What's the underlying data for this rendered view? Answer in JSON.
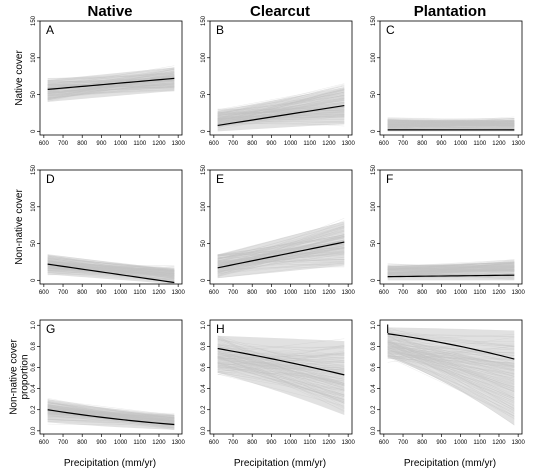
{
  "column_titles": [
    "Native",
    "Clearcut",
    "Plantation"
  ],
  "row_labels": [
    {
      "lines": [
        "Native cover"
      ]
    },
    {
      "lines": [
        "Non-native cover"
      ]
    },
    {
      "lines": [
        "Non-native cover",
        "proportion"
      ]
    }
  ],
  "xlabel": "Precipitation (mm/yr)",
  "chart_data": [
    {
      "panel": "A",
      "type": "line",
      "row": 0,
      "col": 0,
      "x": [
        620,
        1280
      ],
      "xlim": [
        580,
        1320
      ],
      "xticks": [
        600,
        700,
        800,
        900,
        1000,
        1100,
        1200,
        1300
      ],
      "ylim": [
        -5,
        150
      ],
      "yticks": [
        0,
        50,
        100,
        150
      ],
      "mean": [
        57,
        72
      ],
      "band_lower": [
        40,
        55
      ],
      "band_upper": [
        70,
        87
      ],
      "spread_lower": [
        35,
        45
      ],
      "spread_upper": [
        80,
        98
      ]
    },
    {
      "panel": "B",
      "type": "line",
      "row": 0,
      "col": 1,
      "x": [
        620,
        1280
      ],
      "xlim": [
        580,
        1320
      ],
      "xticks": [
        600,
        700,
        800,
        900,
        1000,
        1100,
        1200,
        1300
      ],
      "ylim": [
        -5,
        150
      ],
      "yticks": [
        0,
        50,
        100,
        150
      ],
      "mean": [
        8,
        35
      ],
      "band_lower": [
        0,
        10
      ],
      "band_upper": [
        28,
        60
      ],
      "spread_lower": [
        0,
        0
      ],
      "spread_upper": [
        40,
        80
      ]
    },
    {
      "panel": "C",
      "type": "line",
      "row": 0,
      "col": 2,
      "x": [
        620,
        1280
      ],
      "xlim": [
        580,
        1320
      ],
      "xticks": [
        600,
        700,
        800,
        900,
        1000,
        1100,
        1200,
        1300
      ],
      "ylim": [
        -5,
        150
      ],
      "yticks": [
        0,
        50,
        100,
        150
      ],
      "mean": [
        2,
        2
      ],
      "band_lower": [
        0,
        0
      ],
      "band_upper": [
        15,
        15
      ],
      "spread_lower": [
        0,
        0
      ],
      "spread_upper": [
        28,
        30
      ]
    },
    {
      "panel": "D",
      "type": "line",
      "row": 1,
      "col": 0,
      "x": [
        620,
        1280
      ],
      "xlim": [
        580,
        1320
      ],
      "xticks": [
        600,
        700,
        800,
        900,
        1000,
        1100,
        1200,
        1300
      ],
      "ylim": [
        -5,
        150
      ],
      "yticks": [
        0,
        50,
        100,
        150
      ],
      "mean": [
        22,
        -3
      ],
      "band_lower": [
        8,
        -5
      ],
      "band_upper": [
        35,
        15
      ],
      "spread_lower": [
        0,
        -5
      ],
      "spread_upper": [
        45,
        30
      ]
    },
    {
      "panel": "E",
      "type": "line",
      "row": 1,
      "col": 1,
      "x": [
        620,
        1280
      ],
      "xlim": [
        580,
        1320
      ],
      "xticks": [
        600,
        700,
        800,
        900,
        1000,
        1100,
        1200,
        1300
      ],
      "ylim": [
        -5,
        150
      ],
      "yticks": [
        0,
        50,
        100,
        150
      ],
      "mean": [
        17,
        52
      ],
      "band_lower": [
        3,
        20
      ],
      "band_upper": [
        35,
        80
      ],
      "spread_lower": [
        0,
        5
      ],
      "spread_upper": [
        45,
        100
      ]
    },
    {
      "panel": "F",
      "type": "line",
      "row": 1,
      "col": 2,
      "x": [
        620,
        1280
      ],
      "xlim": [
        580,
        1320
      ],
      "xticks": [
        600,
        700,
        800,
        900,
        1000,
        1100,
        1200,
        1300
      ],
      "ylim": [
        -5,
        150
      ],
      "yticks": [
        0,
        50,
        100,
        150
      ],
      "mean": [
        5,
        7
      ],
      "band_lower": [
        0,
        0
      ],
      "band_upper": [
        20,
        25
      ],
      "spread_lower": [
        0,
        0
      ],
      "spread_upper": [
        30,
        40
      ]
    },
    {
      "panel": "G",
      "type": "line",
      "row": 2,
      "col": 0,
      "x": [
        620,
        1280
      ],
      "xlim": [
        580,
        1320
      ],
      "xticks": [
        600,
        700,
        800,
        900,
        1000,
        1100,
        1200,
        1300
      ],
      "ylim": [
        -0.03,
        1.05
      ],
      "yticks": [
        0.0,
        0.2,
        0.4,
        0.6,
        0.8,
        1.0
      ],
      "mean": [
        0.2,
        0.06
      ],
      "curve": 0.35,
      "band_lower": [
        0.08,
        0.01
      ],
      "band_upper": [
        0.3,
        0.15
      ],
      "spread_lower": [
        0.03,
        0.0
      ],
      "spread_upper": [
        0.35,
        0.22
      ]
    },
    {
      "panel": "H",
      "type": "line",
      "row": 2,
      "col": 1,
      "x": [
        620,
        1280
      ],
      "xlim": [
        580,
        1320
      ],
      "xticks": [
        600,
        700,
        800,
        900,
        1000,
        1100,
        1200,
        1300
      ],
      "ylim": [
        -0.03,
        1.05
      ],
      "yticks": [
        0.0,
        0.2,
        0.4,
        0.6,
        0.8,
        1.0
      ],
      "mean": [
        0.78,
        0.53
      ],
      "curve": -0.15,
      "band_lower": [
        0.55,
        0.15
      ],
      "band_upper": [
        0.9,
        0.85
      ],
      "spread_lower": [
        0.4,
        0.0
      ],
      "spread_upper": [
        0.97,
        0.98
      ]
    },
    {
      "panel": "I",
      "type": "line",
      "row": 2,
      "col": 2,
      "x": [
        620,
        1280
      ],
      "xlim": [
        580,
        1320
      ],
      "xticks": [
        600,
        700,
        800,
        900,
        1000,
        1100,
        1200,
        1300
      ],
      "ylim": [
        -0.03,
        1.05
      ],
      "yticks": [
        0.0,
        0.2,
        0.4,
        0.6,
        0.8,
        1.0
      ],
      "mean": [
        0.92,
        0.68
      ],
      "curve": -0.3,
      "band_lower": [
        0.7,
        0.05
      ],
      "band_upper": [
        0.98,
        0.95
      ],
      "spread_lower": [
        0.5,
        0.0
      ],
      "spread_upper": [
        1.0,
        1.0
      ]
    }
  ]
}
